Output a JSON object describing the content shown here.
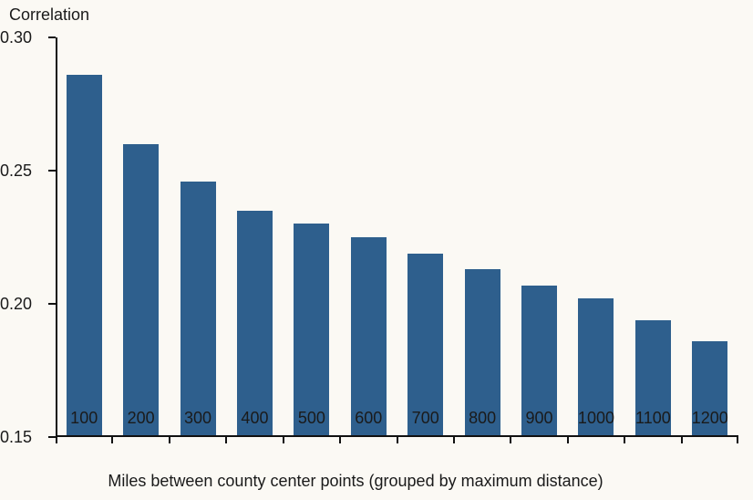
{
  "figure": {
    "background": "#FBF9F4",
    "text_color": "#1a1a1a",
    "axis_color": "#111111"
  },
  "chart_data": {
    "type": "bar",
    "title": "",
    "ylabel": "Correlation",
    "xlabel": "Miles between county center points (grouped by maximum distance)",
    "categories": [
      "100",
      "200",
      "300",
      "400",
      "500",
      "600",
      "700",
      "800",
      "900",
      "1000",
      "1100",
      "1200"
    ],
    "values": [
      0.286,
      0.26,
      0.246,
      0.235,
      0.23,
      0.225,
      0.219,
      0.213,
      0.207,
      0.202,
      0.194,
      0.186
    ],
    "ylim": [
      0.15,
      0.3
    ],
    "yticks": [
      0.3,
      0.25,
      0.2,
      0.15
    ],
    "ytick_labels": [
      "0.30",
      "0.25",
      "0.20",
      "0.15"
    ],
    "bar_color": "#2E5F8D",
    "grid": false,
    "legend": "none"
  }
}
